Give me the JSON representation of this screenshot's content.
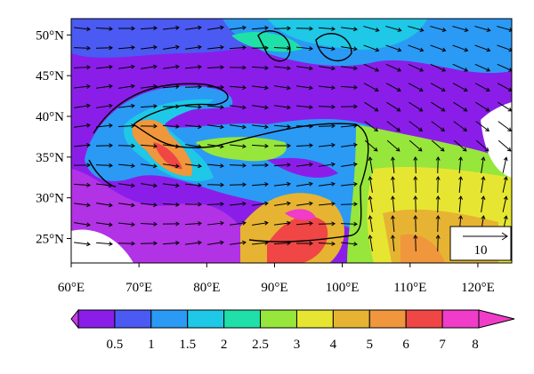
{
  "map": {
    "xlim": [
      60,
      125
    ],
    "ylim": [
      22,
      52
    ],
    "xticks": [
      {
        "value": 60,
        "label": "60°E"
      },
      {
        "value": 70,
        "label": "70°E"
      },
      {
        "value": 80,
        "label": "80°E"
      },
      {
        "value": 90,
        "label": "90°E"
      },
      {
        "value": 100,
        "label": "100°E"
      },
      {
        "value": 110,
        "label": "110°E"
      },
      {
        "value": 120,
        "label": "120°E"
      }
    ],
    "yticks": [
      {
        "value": 25,
        "label": "25°N"
      },
      {
        "value": 30,
        "label": "30°N"
      },
      {
        "value": 35,
        "label": "35°N"
      },
      {
        "value": 40,
        "label": "40°N"
      },
      {
        "value": 45,
        "label": "45°N"
      },
      {
        "value": 50,
        "label": "50°N"
      }
    ],
    "reference_vector": "10"
  },
  "colorbar": {
    "levels": [
      0.5,
      1,
      1.5,
      2,
      2.5,
      3,
      4,
      5,
      6,
      7,
      8
    ],
    "colors": [
      "#c83ce6",
      "#8a1ee8",
      "#4a5af2",
      "#2a9af5",
      "#1ec8e6",
      "#1ee0a8",
      "#96e63c",
      "#e6e632",
      "#e6b432",
      "#f0963c",
      "#f04646",
      "#f03cc8"
    ]
  }
}
